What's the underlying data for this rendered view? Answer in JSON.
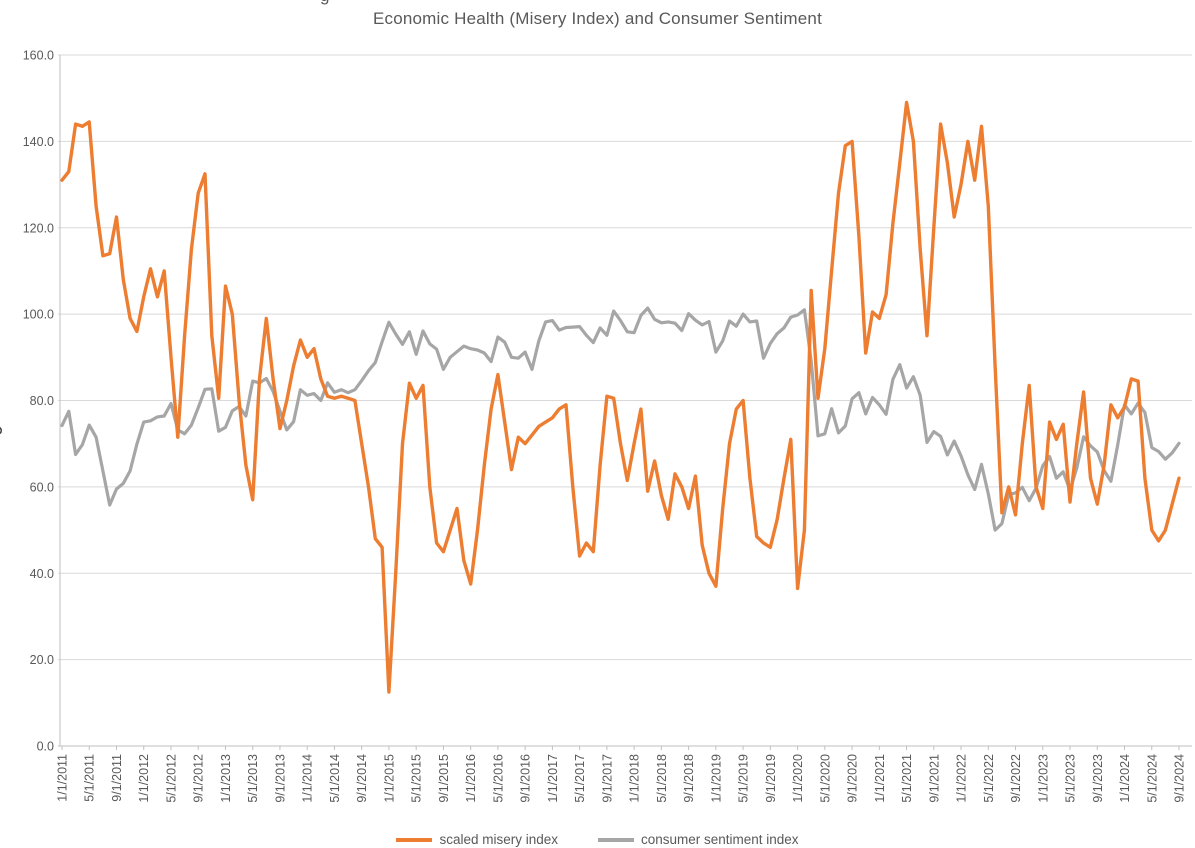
{
  "title": "Economic Health (Misery Index) and Consumer Sentiment",
  "top_fragment": "g",
  "legend": {
    "misery": "scaled misery index",
    "sentiment": "consumer sentiment index"
  },
  "colors": {
    "misery": "#ED7D31",
    "sentiment": "#A6A6A6",
    "grid": "#D9D9D9",
    "axis_line": "#BFBFBF",
    "text": "#595959"
  },
  "y_axis": {
    "min": 0,
    "max": 160,
    "step": 20,
    "tick_labels": [
      "0.0",
      "20.0",
      "40.0",
      "60.0",
      "80.0",
      "100.0",
      "120.0",
      "140.0",
      "160.0"
    ],
    "fragment": "o"
  },
  "x_axis": {
    "tick_every_months": 4,
    "tick_labels": [
      "1/1/2011",
      "5/1/2011",
      "9/1/2011",
      "1/1/2012",
      "5/1/2012",
      "9/1/2012",
      "1/1/2013",
      "5/1/2013",
      "9/1/2013",
      "1/1/2014",
      "5/1/2014",
      "9/1/2014",
      "1/1/2015",
      "5/1/2015",
      "9/1/2015",
      "1/1/2016",
      "5/1/2016",
      "9/1/2016",
      "1/1/2017",
      "5/1/2017",
      "9/1/2017",
      "1/1/2018",
      "5/1/2018",
      "9/1/2018",
      "1/1/2019",
      "5/1/2019",
      "9/1/2019",
      "1/1/2020",
      "5/1/2020",
      "9/1/2020",
      "1/1/2021",
      "5/1/2021",
      "9/1/2021",
      "1/1/2022",
      "5/1/2022",
      "9/1/2022",
      "1/1/2023",
      "5/1/2023",
      "9/1/2023",
      "1/1/2024",
      "5/1/2024",
      "9/1/2024"
    ]
  },
  "chart_data": {
    "type": "line",
    "title": "Economic Health (Misery Index) and Consumer Sentiment",
    "x_start": "1/1/2011",
    "x_end": "9/1/2024",
    "x_frequency": "monthly",
    "ylim": [
      0,
      160
    ],
    "grid": true,
    "legend_position": "bottom",
    "series": [
      {
        "name": "scaled misery index",
        "color": "#ED7D31",
        "values": [
          131,
          133,
          144,
          143.5,
          144.5,
          125,
          113.5,
          114,
          122.5,
          108,
          99,
          96,
          104,
          110.5,
          104,
          110,
          90,
          71.5,
          95,
          115,
          128,
          132.5,
          95,
          80.5,
          106.5,
          100,
          80,
          65,
          57,
          85,
          99,
          85,
          73.5,
          80,
          88,
          94,
          90,
          92,
          85,
          81,
          80.5,
          81,
          80.5,
          80,
          70,
          60,
          48,
          46,
          12.5,
          40,
          70,
          84,
          80.5,
          83.5,
          60,
          47,
          45,
          50,
          55,
          43,
          37.5,
          50,
          65,
          78,
          86,
          75,
          64,
          71.5,
          70,
          72,
          74,
          75,
          76,
          78,
          79,
          60,
          44,
          47,
          45,
          65,
          81,
          80.5,
          70,
          61.5,
          70,
          78,
          59,
          66,
          58,
          52.5,
          63,
          60,
          55,
          62.5,
          46.5,
          40,
          37,
          55,
          70,
          78,
          80,
          62,
          48.5,
          47,
          46,
          52.5,
          62,
          71,
          36.5,
          50,
          105.5,
          80.5,
          92,
          110,
          128,
          139,
          140,
          118,
          91,
          100.5,
          99,
          104.5,
          121,
          135,
          149,
          140,
          115,
          95,
          120,
          144,
          135,
          122.5,
          130,
          140,
          131,
          143.5,
          125,
          88,
          54,
          60,
          53.5,
          70,
          83.5,
          60,
          55,
          75,
          71,
          74.5,
          56.5,
          70,
          82,
          62,
          56,
          65,
          79,
          76,
          78.5,
          85,
          84.5,
          62,
          50,
          47.5,
          50,
          56,
          62
        ]
      },
      {
        "name": "consumer sentiment index",
        "color": "#A6A6A6",
        "values": [
          74.2,
          77.5,
          67.5,
          69.8,
          74.3,
          71.5,
          63.7,
          55.8,
          59.5,
          60.8,
          63.7,
          69.9,
          75,
          75.3,
          76.2,
          76.4,
          79.3,
          73.2,
          72.3,
          74.3,
          78.3,
          82.6,
          82.7,
          72.9,
          73.8,
          77.6,
          78.6,
          76.4,
          84.5,
          84.1,
          85.1,
          82.1,
          77.5,
          73.2,
          75.1,
          82.5,
          81.2,
          81.6,
          80,
          84.1,
          81.9,
          82.5,
          81.8,
          82.5,
          84.6,
          86.9,
          88.8,
          93.6,
          98.1,
          95.4,
          93,
          95.9,
          90.7,
          96.1,
          93.1,
          91.9,
          87.2,
          90,
          91.3,
          92.6,
          92,
          91.7,
          91,
          89,
          94.7,
          93.5,
          90,
          89.8,
          91.2,
          87.2,
          93.8,
          98.2,
          98.5,
          96.3,
          96.9,
          97,
          97.1,
          95.1,
          93.4,
          96.8,
          95.1,
          100.7,
          98.5,
          95.9,
          95.7,
          99.7,
          101.4,
          98.8,
          98,
          98.2,
          97.9,
          96.2,
          100.1,
          98.6,
          97.5,
          98.3,
          91.2,
          93.8,
          98.4,
          97.2,
          100,
          98.2,
          98.4,
          89.8,
          93.2,
          95.5,
          96.8,
          99.3,
          99.8,
          101,
          89.1,
          71.8,
          72.3,
          78.1,
          72.5,
          74.1,
          80.4,
          81.8,
          76.9,
          80.7,
          79,
          76.8,
          84.9,
          88.3,
          82.9,
          85.5,
          81.2,
          70.3,
          72.8,
          71.7,
          67.4,
          70.6,
          67.2,
          62.8,
          59.4,
          65.2,
          58.4,
          50,
          51.5,
          58.2,
          58.6,
          59.9,
          56.8,
          59.7,
          64.9,
          67,
          62,
          63.5,
          59.2,
          64.4,
          71.6,
          69.5,
          68.1,
          63.8,
          61.3,
          69.7,
          79,
          76.9,
          79.4,
          77.2,
          69.1,
          68.2,
          66.4,
          67.9,
          70.1
        ]
      }
    ]
  }
}
